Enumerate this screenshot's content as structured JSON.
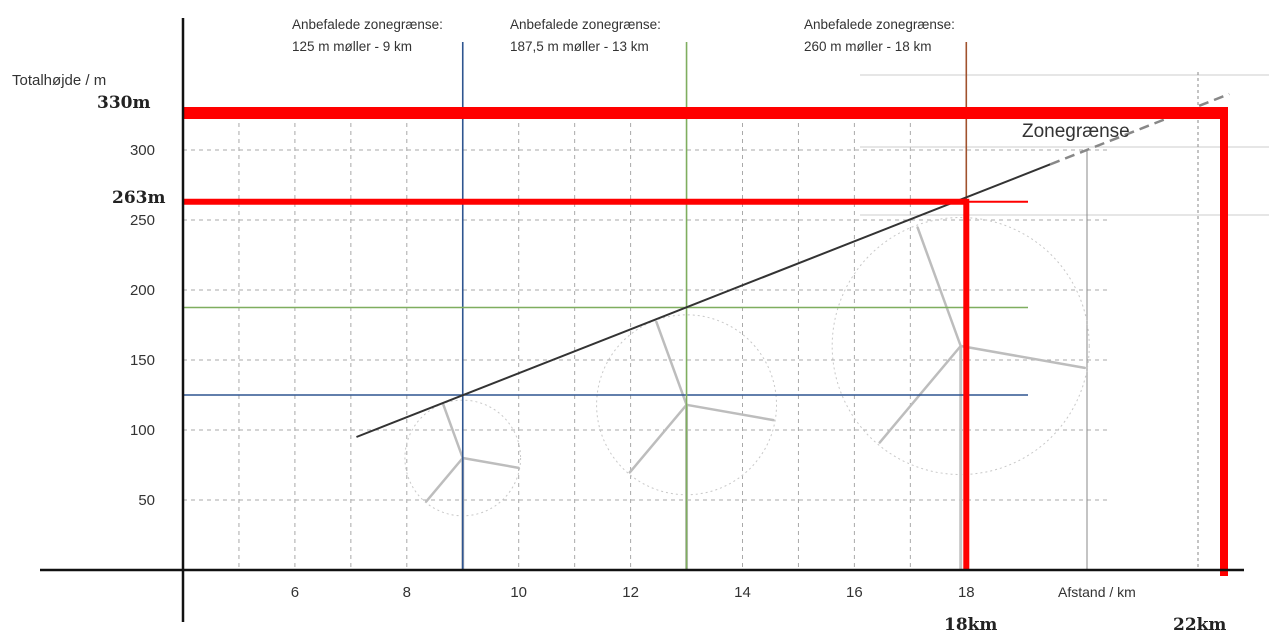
{
  "chart_data": {
    "type": "line",
    "ylabel": "Totalhøjde / m",
    "xlabel": "Afstand / km",
    "xlim": [
      4,
      23
    ],
    "ylim": [
      0,
      330
    ],
    "x_ticks": [
      6,
      8,
      10,
      12,
      14,
      16,
      18
    ],
    "y_ticks": [
      50,
      100,
      150,
      200,
      250,
      300
    ],
    "grid": true,
    "zone_line": {
      "name": "Zonegrænse",
      "x": [
        7.1,
        22.7
      ],
      "y": [
        95,
        340
      ],
      "solid_until_x": 19.5,
      "color": "#333333"
    },
    "recommendations": [
      {
        "label_line1": "Anbefalede zonegrænse:",
        "label_line2": "125 m møller - 9 km",
        "x": 9,
        "y": 125,
        "color": "#2f5590"
      },
      {
        "label_line1": "Anbefalede zonegrænse:",
        "label_line2": "187,5 m møller - 13 km",
        "x": 13,
        "y": 187.5,
        "color": "#7fae5f"
      },
      {
        "label_line1": "Anbefalede zonegrænse:",
        "label_line2": "260 m møller - 18 km",
        "x": 18,
        "y": 260,
        "color": "#a0522d"
      }
    ],
    "highlights": [
      {
        "label": "263m",
        "x_label": "18km",
        "x": 18,
        "y": 263,
        "color": "#ff0000"
      },
      {
        "label": "330m",
        "x_label": "22km",
        "x": 22.5,
        "y": 330,
        "color": "#ff0000"
      }
    ],
    "turbines": [
      {
        "hub_x": 9,
        "hub_y": 80,
        "rotor": 45
      },
      {
        "hub_x": 13,
        "hub_y": 118,
        "rotor": 70
      },
      {
        "hub_x": 17.9,
        "hub_y": 160,
        "rotor": 100
      }
    ]
  }
}
